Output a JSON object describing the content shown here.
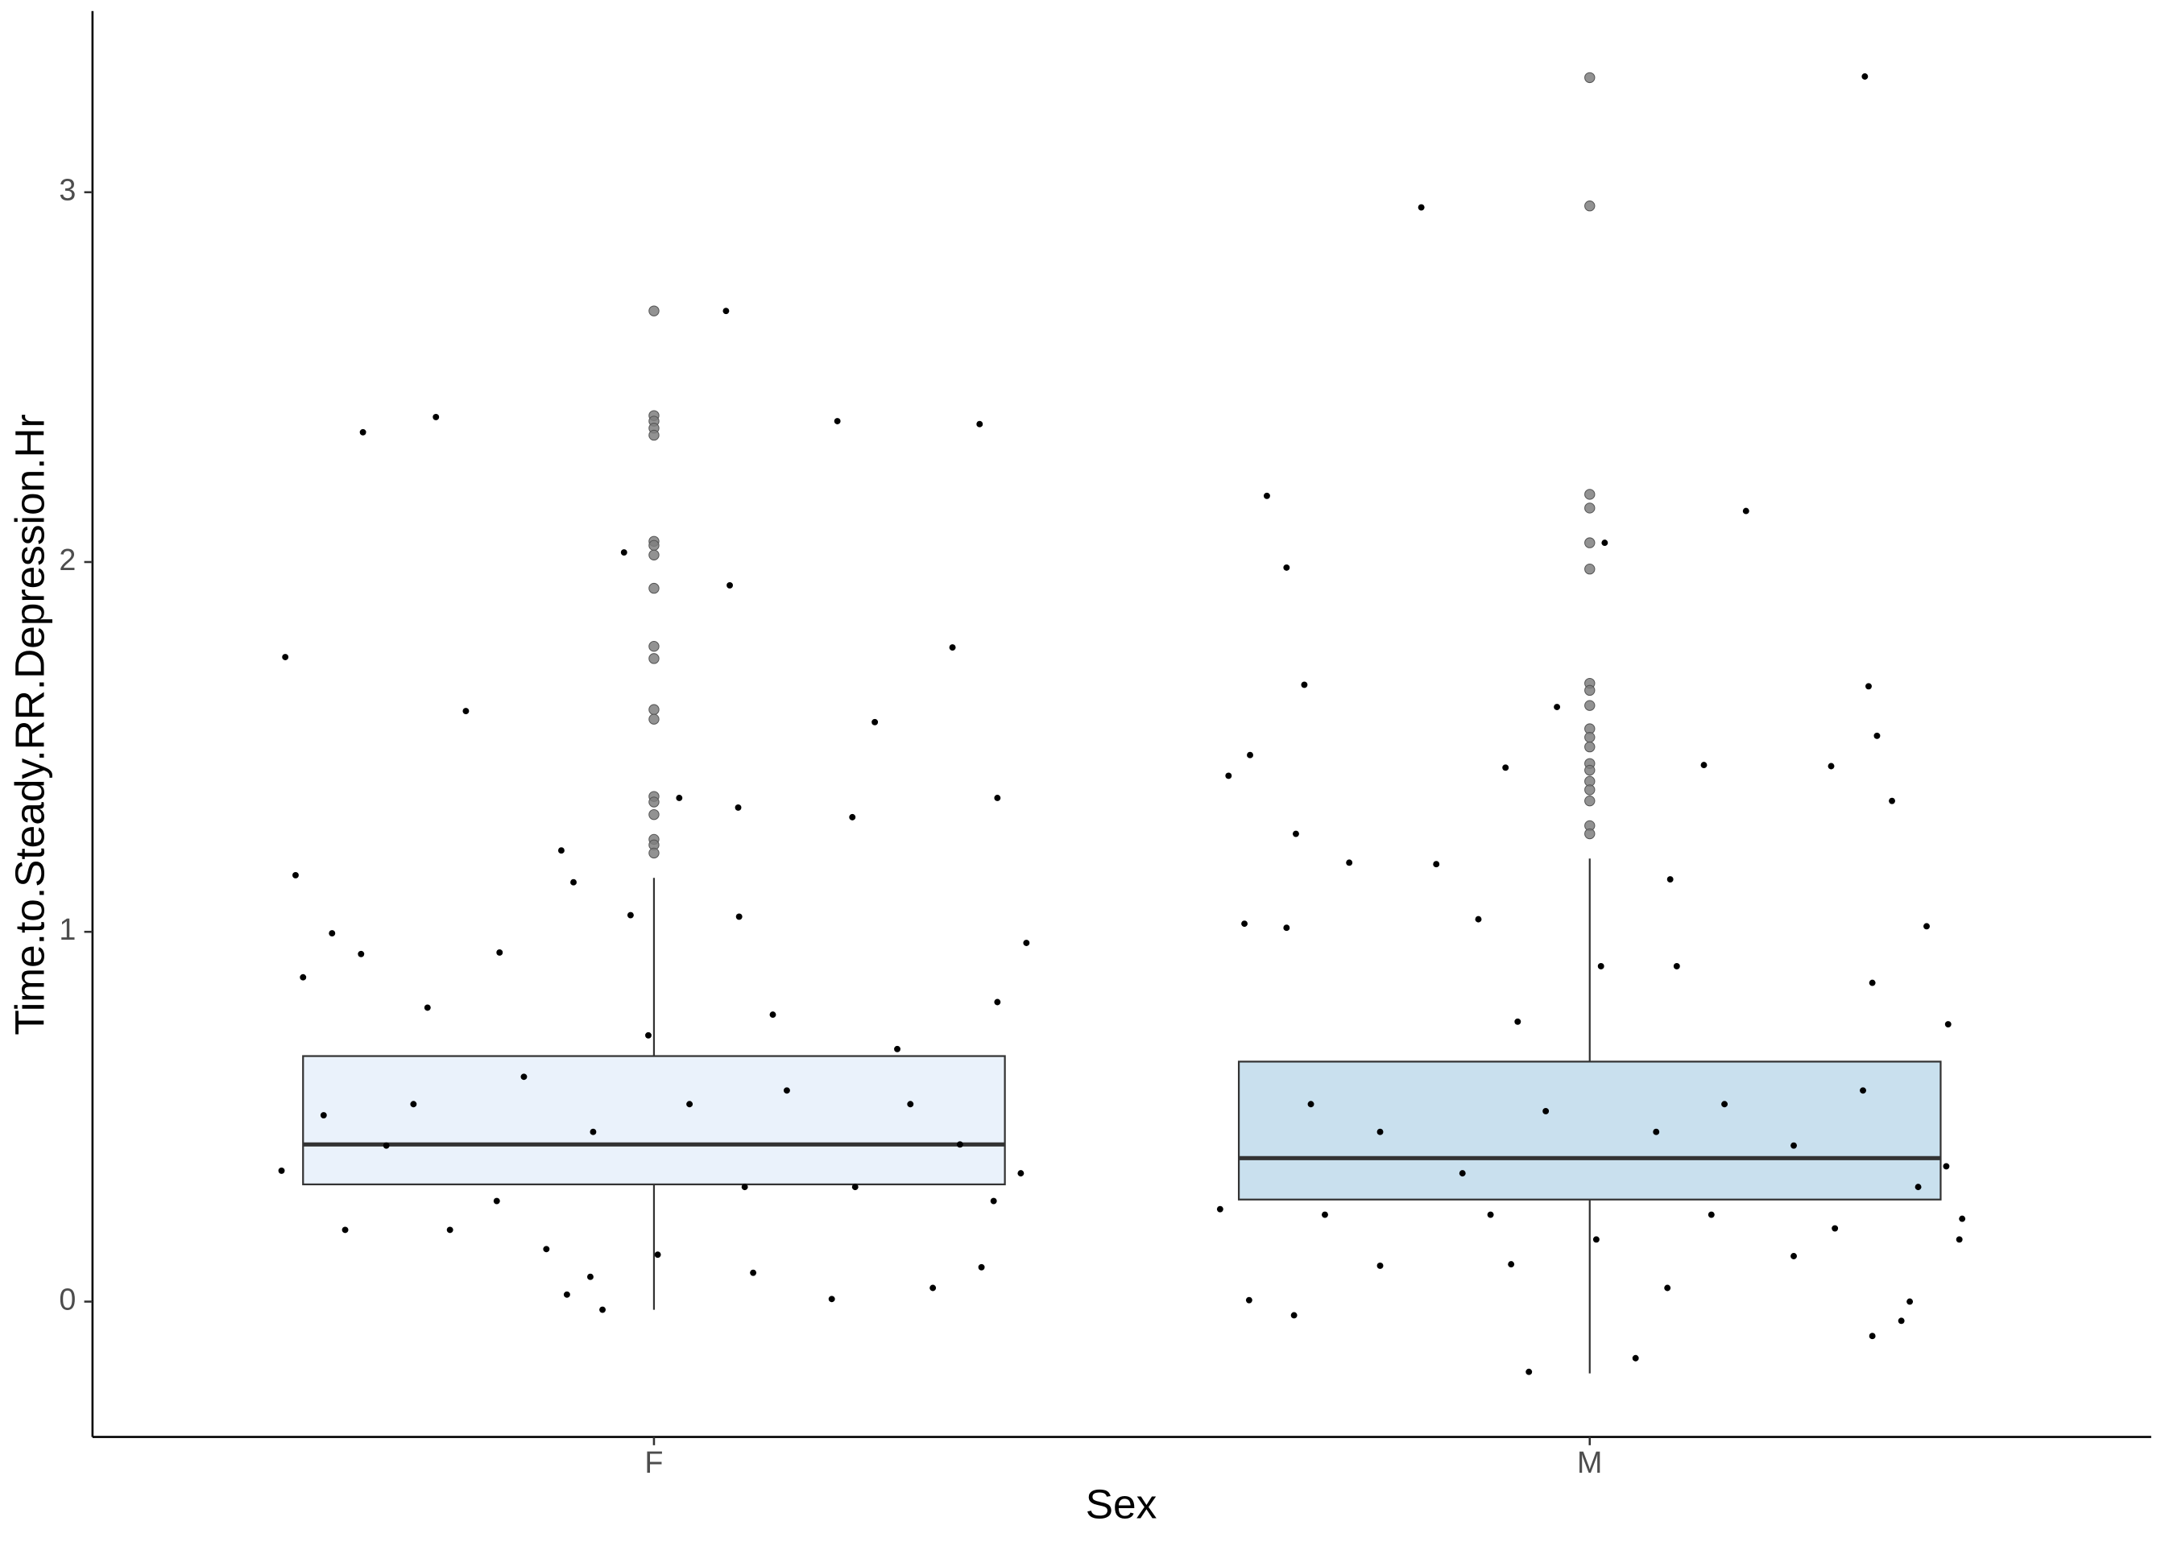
{
  "chart_data": {
    "type": "box",
    "x_label": "Sex",
    "y_label": "Time.to.Steady.RR.Depression.Hr",
    "xlim": [
      0.4,
      2.6
    ],
    "xticks": [
      {
        "value": 1,
        "label": "F"
      },
      {
        "value": 2,
        "label": "M"
      }
    ],
    "ylim": [
      -0.366,
      3.49
    ],
    "yticks": [
      0,
      1,
      2,
      3
    ],
    "grid": false,
    "outlier_color": "#7f7f7f",
    "point_color": "#000000",
    "boxes": [
      {
        "color": "#eaf2fb",
        "whisker_low": -0.022,
        "q1": 0.317,
        "median": 0.425,
        "q3": 0.664,
        "whisker_high": 1.146,
        "outliers": [
          2.679,
          2.396,
          2.381,
          2.362,
          2.343,
          2.056,
          2.045,
          2.019,
          1.929,
          1.772,
          1.739,
          1.601,
          1.575,
          1.366,
          1.351,
          1.317,
          1.25,
          1.235,
          1.213
        ],
        "points": {
          "x": [
            0.606,
            0.617,
            0.625,
            0.656,
            0.689,
            0.687,
            0.767,
            0.799,
            0.835,
            0.901,
            0.914,
            0.968,
            0.975,
            1.027,
            1.077,
            1.081,
            1.09,
            1.091,
            1.196,
            1.236,
            1.212,
            1.319,
            1.348,
            1.367,
            1.398,
            1.367,
            1.327,
            1.35,
            1.298,
            1.19,
            1.106,
            0.945,
            0.932,
            0.907,
            0.885,
            1.004,
            0.782,
            0.67,
            0.602,
            0.647,
            0.743,
            0.861,
            0.935,
            1.038,
            1.142,
            1.274,
            1.392,
            1.215,
            0.832,
            1.127,
            0.758,
            0.994,
            1.26,
            0.714,
            1.097,
            1.363
          ],
          "y": [
            1.743,
            1.153,
            0.877,
            0.996,
            2.351,
            0.94,
            2.392,
            1.597,
            0.944,
            1.22,
            1.134,
            2.026,
            1.045,
            1.362,
            2.679,
            1.937,
            1.336,
            1.041,
            2.381,
            1.567,
            1.31,
            1.769,
            2.373,
            1.362,
            0.97,
            0.81,
            0.425,
            0.093,
            0.037,
            0.007,
            0.078,
            -0.022,
            0.067,
            0.019,
            0.142,
            0.127,
            0.194,
            0.194,
            0.354,
            0.504,
            0.534,
            0.608,
            0.459,
            0.534,
            0.571,
            0.534,
            0.347,
            0.31,
            0.272,
            0.776,
            0.795,
            0.72,
            0.683,
            0.422,
            0.31,
            0.272
          ]
        }
      },
      {
        "color": "#c9e0ee",
        "whisker_low": -0.194,
        "q1": 0.276,
        "median": 0.388,
        "q3": 0.649,
        "whisker_high": 1.198,
        "outliers": [
          3.31,
          2.963,
          2.183,
          2.146,
          2.052,
          1.981,
          1.672,
          1.653,
          1.612,
          1.549,
          1.526,
          1.5,
          1.455,
          1.437,
          1.407,
          1.384,
          1.354,
          1.287,
          1.265
        ],
        "points": {
          "x": [
            1.614,
            1.637,
            1.655,
            1.676,
            1.695,
            1.631,
            1.676,
            1.686,
            1.743,
            1.82,
            1.836,
            1.881,
            1.91,
            1.965,
            2.016,
            2.167,
            2.122,
            2.086,
            2.294,
            2.298,
            2.323,
            2.307,
            2.258,
            2.36,
            2.302,
            2.383,
            2.342,
            2.302,
            2.333,
            1.935,
            2.049,
            1.684,
            1.636,
            2.007,
            2.083,
            1.916,
            1.776,
            1.605,
            2.395,
            2.398,
            2.381,
            1.702,
            1.776,
            1.864,
            1.953,
            2.071,
            2.144,
            2.218,
            2.292,
            2.351,
            2.13,
            1.894,
            1.717,
            2.012,
            2.093,
            1.923,
            2.262,
            2.218
          ],
          "y": [
            1.422,
            1.478,
            2.179,
            1.985,
            1.668,
            1.022,
            1.011,
            1.265,
            1.187,
            2.959,
            1.183,
            1.034,
            1.444,
            1.608,
            2.052,
            2.138,
            1.451,
            1.142,
            3.313,
            1.664,
            1.354,
            1.53,
            1.448,
            1.015,
            0.862,
            0.75,
            0.0,
            -0.093,
            -0.052,
            -0.19,
            -0.153,
            -0.037,
            0.004,
            0.168,
            0.037,
            0.101,
            0.097,
            0.25,
            0.168,
            0.224,
            0.366,
            0.534,
            0.459,
            0.347,
            0.515,
            0.459,
            0.534,
            0.422,
            0.571,
            0.31,
            0.235,
            0.235,
            0.235,
            0.907,
            0.907,
            0.757,
            0.198,
            0.123
          ]
        }
      }
    ]
  }
}
